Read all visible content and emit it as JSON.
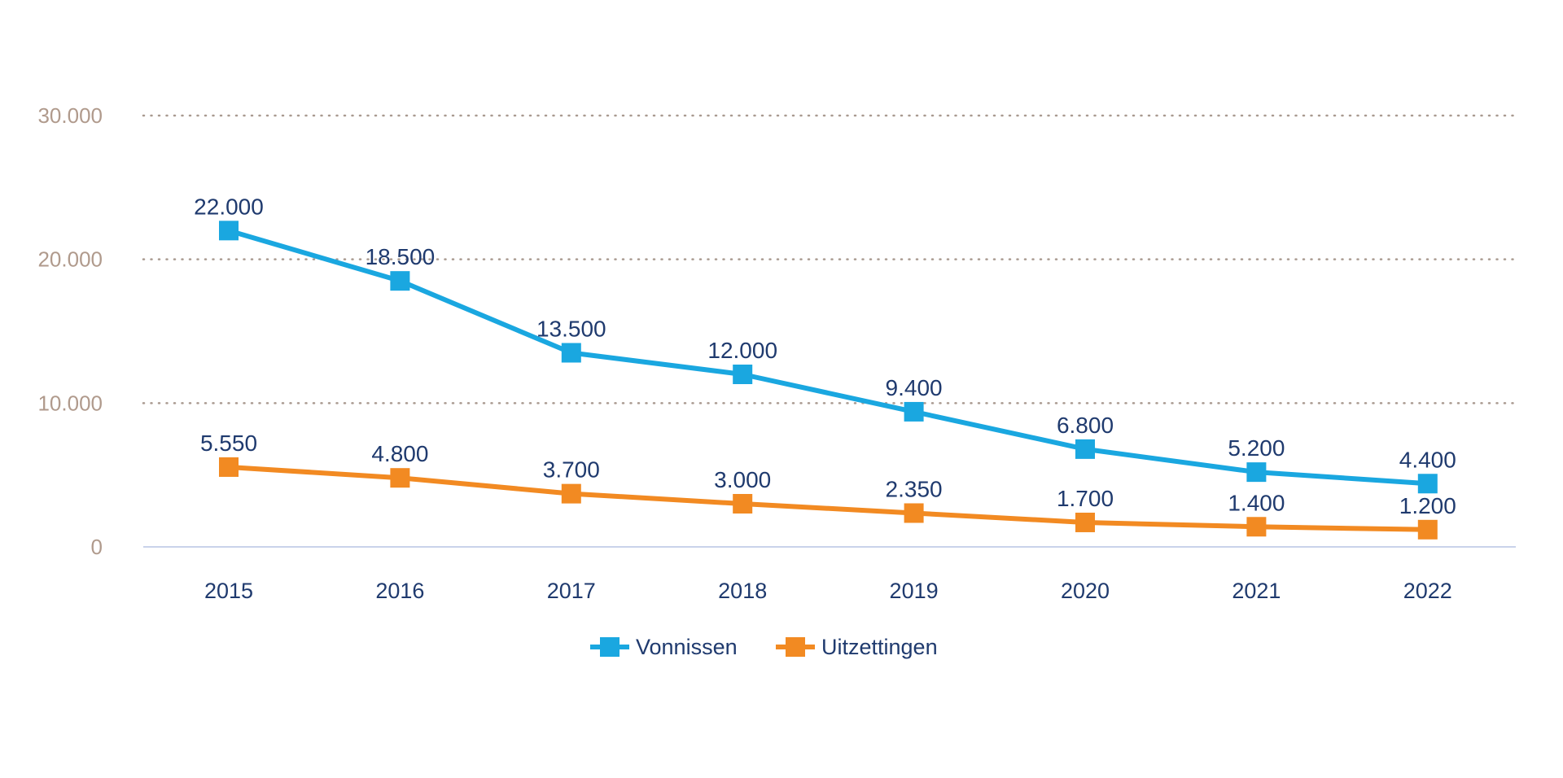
{
  "chart_data": {
    "type": "line",
    "title": "",
    "xlabel": "",
    "ylabel": "",
    "categories": [
      "2015",
      "2016",
      "2017",
      "2018",
      "2019",
      "2020",
      "2021",
      "2022"
    ],
    "ylim": [
      0,
      30000
    ],
    "yticks": [
      0,
      10000,
      20000,
      30000
    ],
    "ytick_labels": [
      "0",
      "10.000",
      "20.000",
      "30.000"
    ],
    "grid": "horizontal dotted",
    "legend": "bottom-center",
    "series": [
      {
        "name": "Vonnissen",
        "color": "#1aa7e0",
        "values": [
          22000,
          18500,
          13500,
          12000,
          9400,
          6800,
          5200,
          4400
        ],
        "labels": [
          "22.000",
          "18.500",
          "13.500",
          "12.000",
          "9.400",
          "6.800",
          "5.200",
          "4.400"
        ]
      },
      {
        "name": "Uitzettingen",
        "color": "#f28a22",
        "values": [
          5550,
          4800,
          3700,
          3000,
          2350,
          1700,
          1400,
          1200
        ],
        "labels": [
          "5.550",
          "4.800",
          "3.700",
          "3.000",
          "2.350",
          "1.700",
          "1.400",
          "1.200"
        ]
      }
    ]
  }
}
